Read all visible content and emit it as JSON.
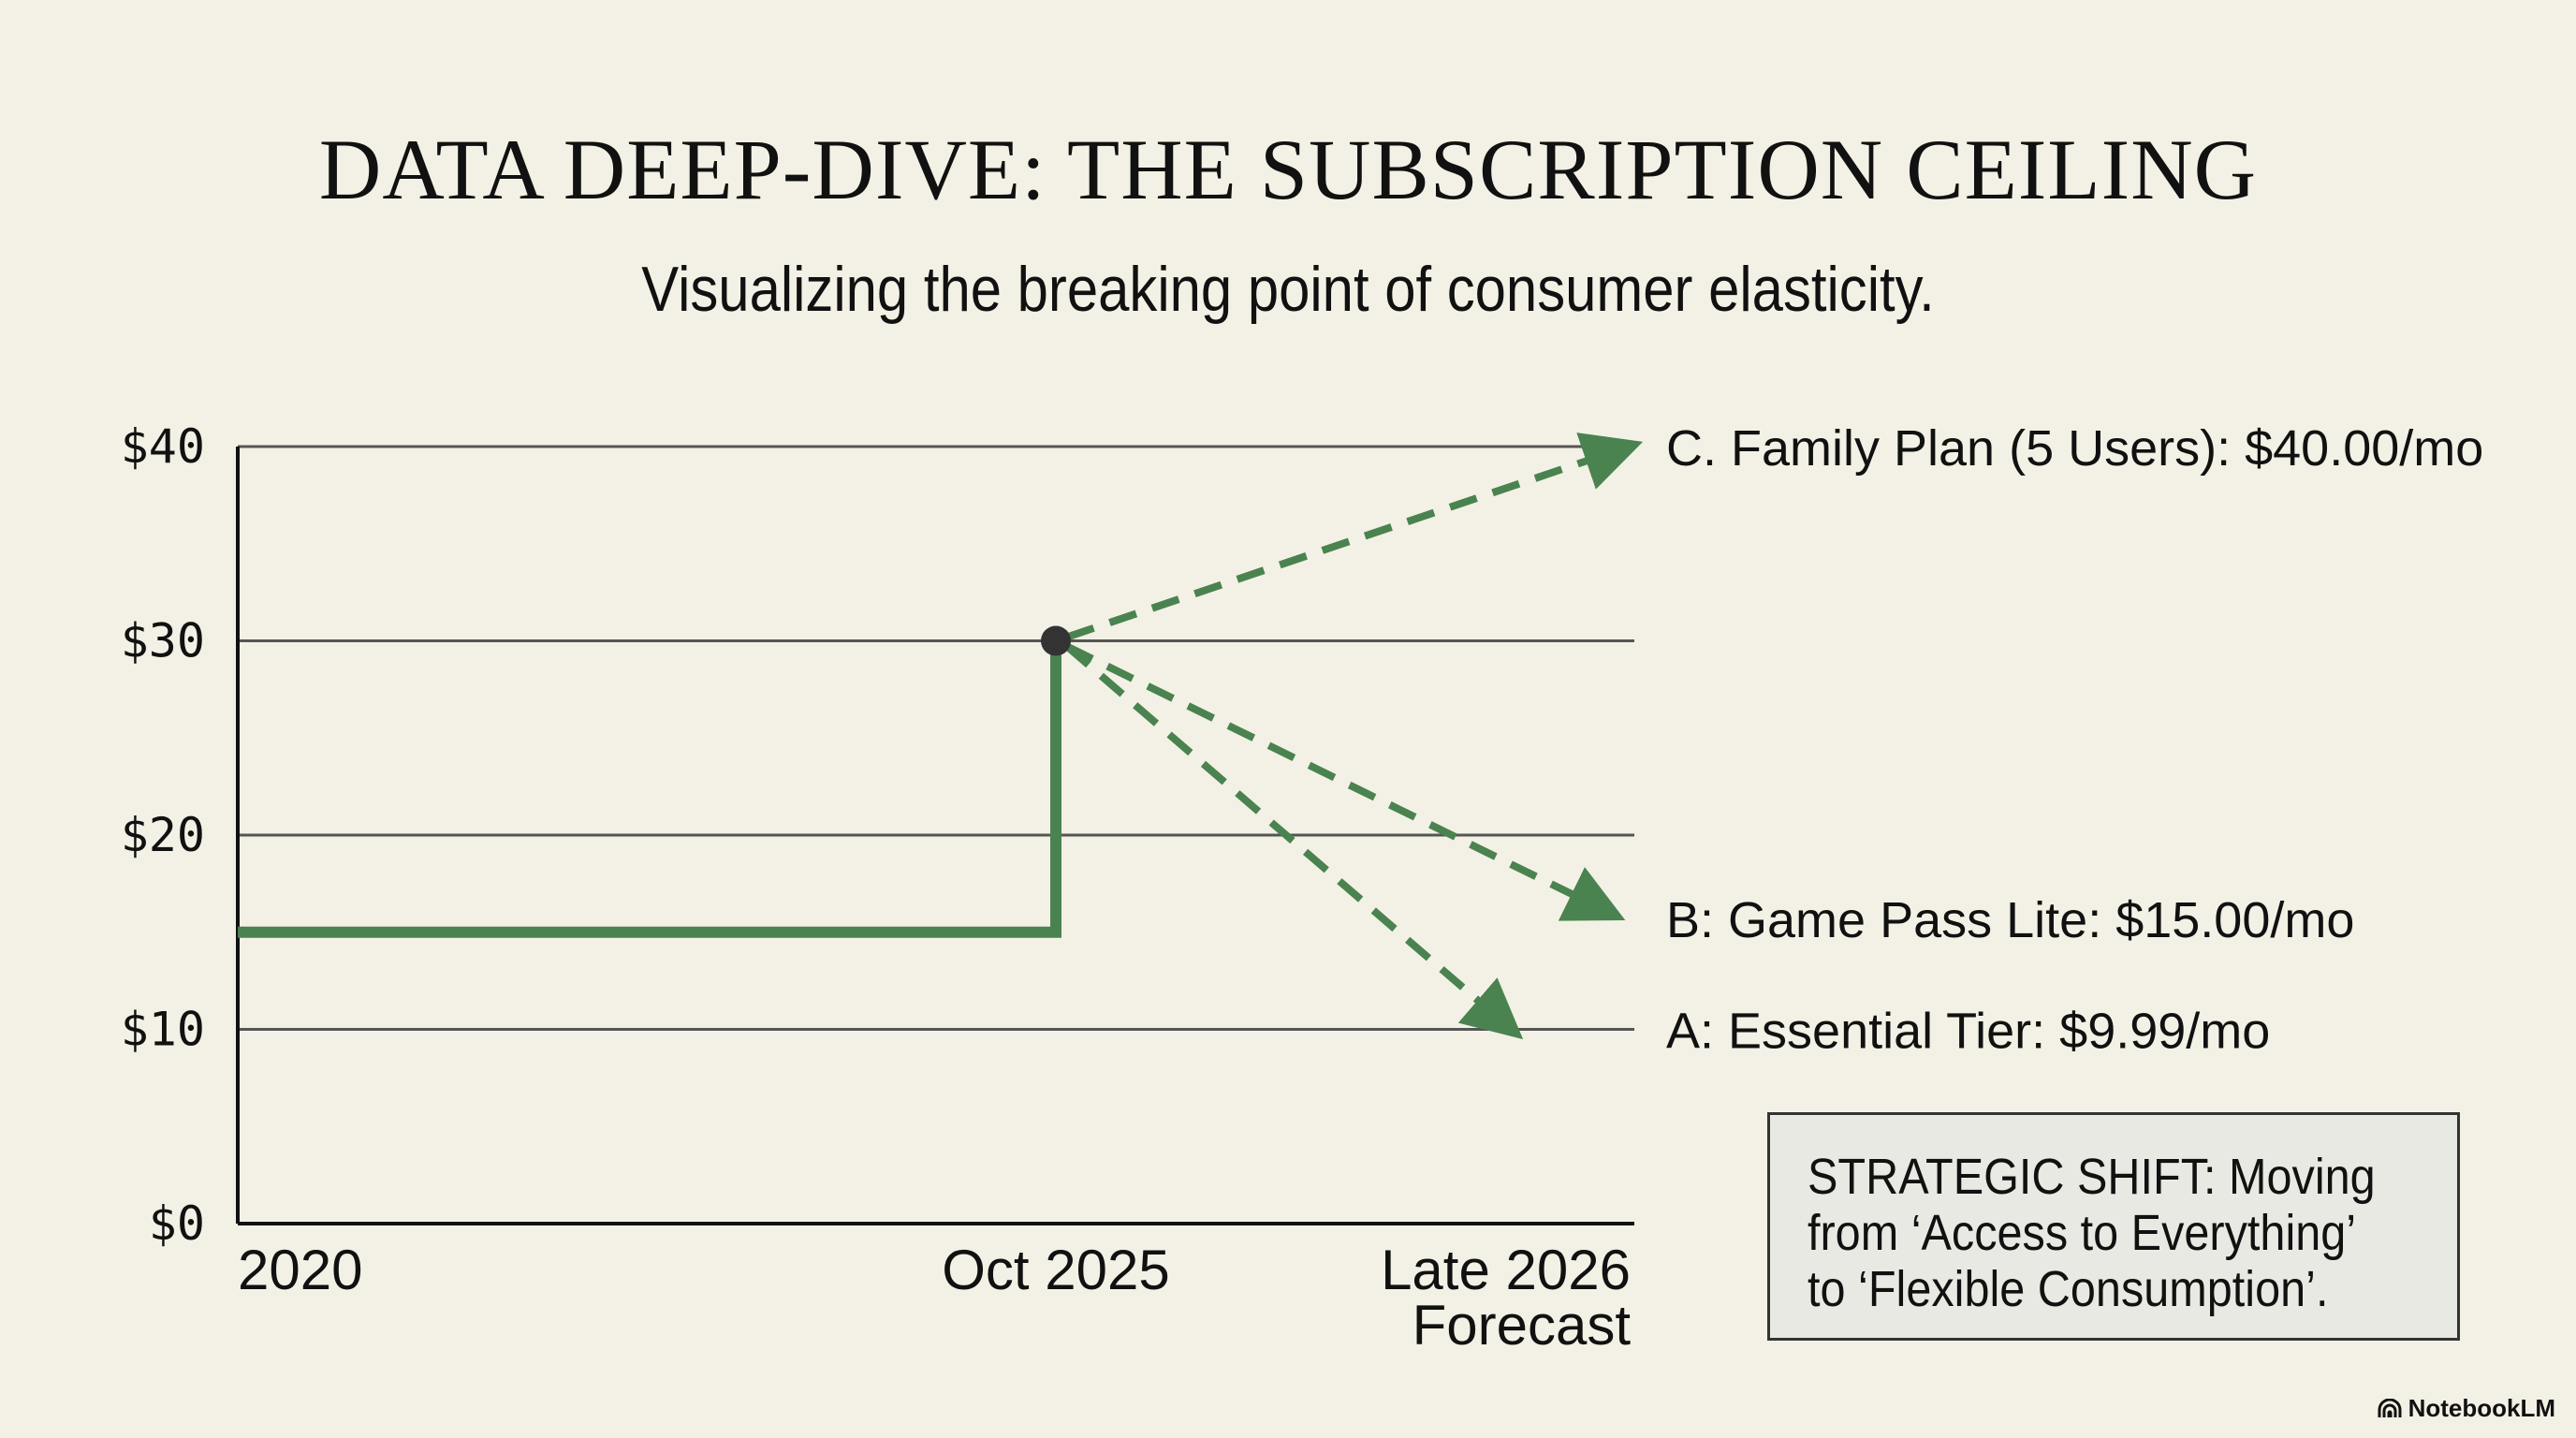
{
  "header": {
    "title": "DATA DEEP-DIVE: THE SUBSCRIPTION CEILING",
    "subtitle": "Visualizing the breaking point of consumer elasticity."
  },
  "chart_data": {
    "type": "line",
    "title": "DATA DEEP-DIVE: THE SUBSCRIPTION CEILING",
    "ylim": [
      0,
      40
    ],
    "yticks": [
      "$0",
      "$10",
      "$20",
      "$30",
      "$40"
    ],
    "ytick_values": [
      0,
      10,
      20,
      30,
      40
    ],
    "xticks": [
      "2020",
      "Oct 2025",
      "Late 2026",
      "Forecast"
    ],
    "grid": true,
    "colors": {
      "line": "#4a8350",
      "point": "#333333",
      "grid": "#555555"
    },
    "historical": {
      "x": [
        "2020",
        "Oct 2025",
        "Oct 2025"
      ],
      "y": [
        15,
        15,
        30
      ]
    },
    "current_point": {
      "x": "Oct 2025",
      "y": 30
    },
    "forecasts": [
      {
        "label": "C. Family Plan (5 Users): $40.00/mo",
        "from": 30,
        "to": 40
      },
      {
        "label": "B: Game Pass Lite: $15.00/mo",
        "from": 30,
        "to": 15
      },
      {
        "label": "A: Essential Tier: $9.99/mo",
        "from": 30,
        "to": 9.99
      }
    ]
  },
  "callout": {
    "lines": [
      "STRATEGIC SHIFT: Moving",
      "from ‘Access to Everything’",
      "to ‘Flexible Consumption’."
    ]
  },
  "brand": {
    "name": "NotebookLM"
  }
}
